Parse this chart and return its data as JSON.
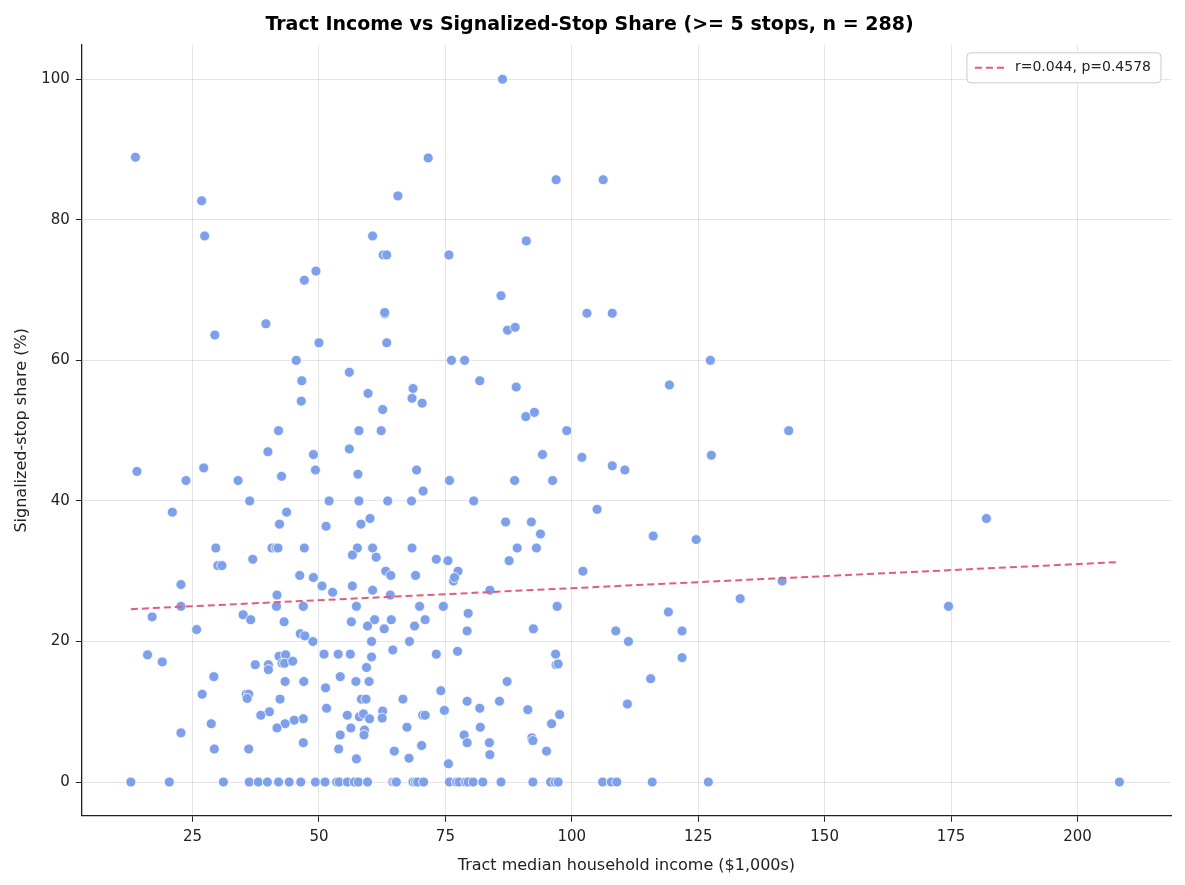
{
  "chart_data": {
    "type": "scatter",
    "title": "Tract Income vs Signalized-Stop Share (>= 5 stops, n = 288)",
    "xlabel": "Tract median household income ($1,000s)",
    "ylabel": "Signalized-stop share (%)",
    "xlim": [
      3.1,
      218.5
    ],
    "ylim": [
      -4.8,
      104.9
    ],
    "xticks": [
      25,
      50,
      75,
      100,
      125,
      150,
      175,
      200
    ],
    "yticks": [
      0,
      20,
      40,
      60,
      80,
      100
    ],
    "grid": true,
    "legend": "top right",
    "marker": "circle",
    "series": [
      {
        "color": "#7c9fee",
        "x": [
          86.3,
          13.7,
          71.6,
          26.8,
          65.6,
          96.9,
          106.2,
          27.4,
          60.6,
          91,
          49.4,
          47.1,
          62.7,
          63.4,
          75.7,
          39.5,
          29.4,
          63,
          63,
          103,
          108,
          86,
          87.3,
          88.8,
          50,
          63.4,
          45.5,
          76.2,
          78.8,
          127.4,
          56,
          46.6,
          81.8,
          89,
          68.6,
          119.3,
          59.7,
          46.5,
          68.4,
          70.4,
          62.6,
          90.9,
          92.6,
          42,
          57.9,
          62.3,
          99,
          142.9,
          56,
          39.9,
          48.9,
          94.2,
          102,
          127.6,
          108,
          110.5,
          69.3,
          49.3,
          27.2,
          14,
          42.6,
          57.7,
          23.7,
          34,
          75.8,
          88.7,
          96.2,
          70.6,
          52,
          36.3,
          57.9,
          63.6,
          68.3,
          80.6,
          21,
          43.6,
          60.1,
          105,
          182,
          58.3,
          42.2,
          86.9,
          92,
          51.4,
          93.8,
          116.1,
          124.6,
          29.6,
          40.7,
          41.5,
          41.9,
          47.1,
          57.6,
          60.6,
          68.4,
          89.2,
          93,
          73.2,
          75.5,
          87.6,
          36.9,
          56.6,
          61.3,
          30,
          30.8,
          63.2,
          64.2,
          77.5,
          76.6,
          76.8,
          102.2,
          46.2,
          48.9,
          69.1,
          22.7,
          50.6,
          56.6,
          60.6,
          52.7,
          41.7,
          64.1,
          83.8,
          133.3,
          141.6,
          22.7,
          41.6,
          46.9,
          57.4,
          69.9,
          74.6,
          97.1,
          174.5,
          119.1,
          79.5,
          35,
          36.5,
          43.1,
          56.4,
          61,
          64.3,
          71,
          59.6,
          68.9,
          62.9,
          92.4,
          79.3,
          108.7,
          121.8,
          17,
          25.8,
          46.3,
          47.2,
          48.8,
          60.4,
          67.9,
          111.2,
          16.1,
          19,
          42.1,
          43.4,
          51,
          53.8,
          56.2,
          60.4,
          64.6,
          73.2,
          77.4,
          96.8,
          121.8,
          42.7,
          43.2,
          44.8,
          40,
          37.4,
          40,
          59.4,
          96.9,
          97.3,
          115.6,
          54.2,
          29.2,
          47,
          43.3,
          57.3,
          59.9,
          87.2,
          74.1,
          51.3,
          35.6,
          36.1,
          26.9,
          35.8,
          42.3,
          58.4,
          59.3,
          66.6,
          79.3,
          85.7,
          111,
          74.8,
          51.5,
          62.6,
          40.2,
          81.8,
          91.3,
          38.5,
          55.6,
          58,
          58.8,
          60,
          62.5,
          46.9,
          45.1,
          43.3,
          28.7,
          70.5,
          71,
          97.6,
          96,
          41.7,
          56.3,
          59,
          67.4,
          81.9,
          54.2,
          58.9,
          78.7,
          22.7,
          92.1,
          92.3,
          79.3,
          83.7,
          46.9,
          70.3,
          29.3,
          36.1,
          53.9,
          64.9,
          95,
          57.4,
          67.8,
          83.8,
          75.6,
          12.8,
          20.4,
          31.1,
          36.2,
          38,
          39.8,
          42,
          44.1,
          46.4,
          49.3,
          51.2,
          53.5,
          54,
          55.6,
          57,
          57.8,
          59.6,
          64.6,
          65,
          65.3,
          68.6,
          69.1,
          69.5,
          70.7,
          75.8,
          77.2,
          77.7,
          79,
          79.5,
          80.5,
          82.4,
          86,
          92.3,
          95.8,
          96.7,
          97.3,
          106.1,
          107.8,
          108.9,
          115.9,
          127,
          208.3
        ],
        "values": [
          100,
          88.9,
          88.8,
          82.7,
          83.4,
          85.7,
          85.7,
          77.7,
          77.7,
          77,
          72.7,
          71.4,
          75,
          75,
          75,
          65.2,
          63.6,
          66.6,
          66.8,
          66.7,
          66.7,
          69.2,
          64.3,
          64.7,
          62.5,
          62.5,
          60,
          60,
          60,
          60,
          58.3,
          57.1,
          57.1,
          56.2,
          56,
          56.5,
          55.3,
          54.2,
          54.6,
          53.9,
          53,
          52,
          52.6,
          50,
          50,
          50,
          50,
          50,
          47.4,
          47,
          46.6,
          46.6,
          46.2,
          46.5,
          45,
          44.4,
          44.4,
          44.4,
          44.7,
          44.2,
          43.5,
          43.8,
          42.9,
          42.9,
          42.9,
          42.9,
          42.9,
          41.4,
          40,
          40,
          40,
          40,
          40,
          40,
          38.4,
          38.4,
          37.5,
          38.8,
          37.5,
          36.7,
          36.7,
          37,
          37,
          36.4,
          35.3,
          35,
          34.5,
          33.3,
          33.3,
          33.3,
          33.3,
          33.3,
          33.3,
          33.3,
          33.3,
          33.3,
          33.3,
          31.7,
          31.5,
          31.5,
          31.7,
          32.3,
          32,
          30.8,
          30.8,
          30,
          29.4,
          30,
          28.6,
          29.1,
          30,
          29.4,
          29.1,
          29.4,
          28.1,
          27.9,
          27.9,
          27.3,
          27,
          26.6,
          26.6,
          27.3,
          26.1,
          28.6,
          25,
          25,
          25,
          25,
          25,
          25,
          25,
          25,
          24.2,
          24,
          23.8,
          23.1,
          22.8,
          22.8,
          23.1,
          23.1,
          23.1,
          22.2,
          22.2,
          21.8,
          21.8,
          21.5,
          21.5,
          21.5,
          23.5,
          21.7,
          21.1,
          20.8,
          20,
          20,
          20,
          20,
          18.1,
          17.1,
          17.9,
          18.1,
          18.2,
          18.2,
          18.2,
          17.8,
          18.8,
          18.2,
          18.6,
          18.2,
          17.7,
          16.9,
          16.9,
          17.2,
          16.7,
          16.7,
          16,
          16.3,
          16.7,
          16.8,
          14.7,
          15,
          15,
          14.3,
          14.3,
          14.3,
          14.3,
          14.3,
          13,
          13.4,
          12.5,
          12.5,
          12.5,
          11.9,
          11.8,
          11.8,
          11.8,
          11.8,
          11.5,
          11.5,
          11.1,
          10.2,
          10.5,
          10.1,
          10,
          10.5,
          10.3,
          9.5,
          9.5,
          9.3,
          9.7,
          9,
          9.1,
          9,
          8.8,
          8.3,
          8.3,
          9.5,
          9.5,
          9.6,
          8.3,
          7.7,
          7.7,
          7.4,
          7.8,
          7.8,
          6.7,
          6.7,
          6.7,
          7,
          6.3,
          5.9,
          5.6,
          5.6,
          5.6,
          5.2,
          4.7,
          4.7,
          4.7,
          4.4,
          4.4,
          3.3,
          3.4,
          3.9,
          2.6,
          0,
          0,
          0,
          0,
          0,
          0,
          0,
          0,
          0,
          0,
          0,
          0,
          0,
          0,
          0,
          0,
          0,
          0,
          0,
          0,
          0,
          0,
          0,
          0,
          0,
          0,
          0,
          0,
          0,
          0,
          0,
          0,
          0,
          0,
          0,
          0,
          0,
          0,
          0,
          0,
          0,
          0
        ]
      },
      {
        "type": "line",
        "name": "r=0.044, p=0.4578",
        "color": "#e45b7b",
        "line_style": "dashed",
        "marker": "none",
        "x": [
          12.8,
          208.3
        ],
        "values": [
          24.6,
          31.3
        ]
      }
    ]
  }
}
